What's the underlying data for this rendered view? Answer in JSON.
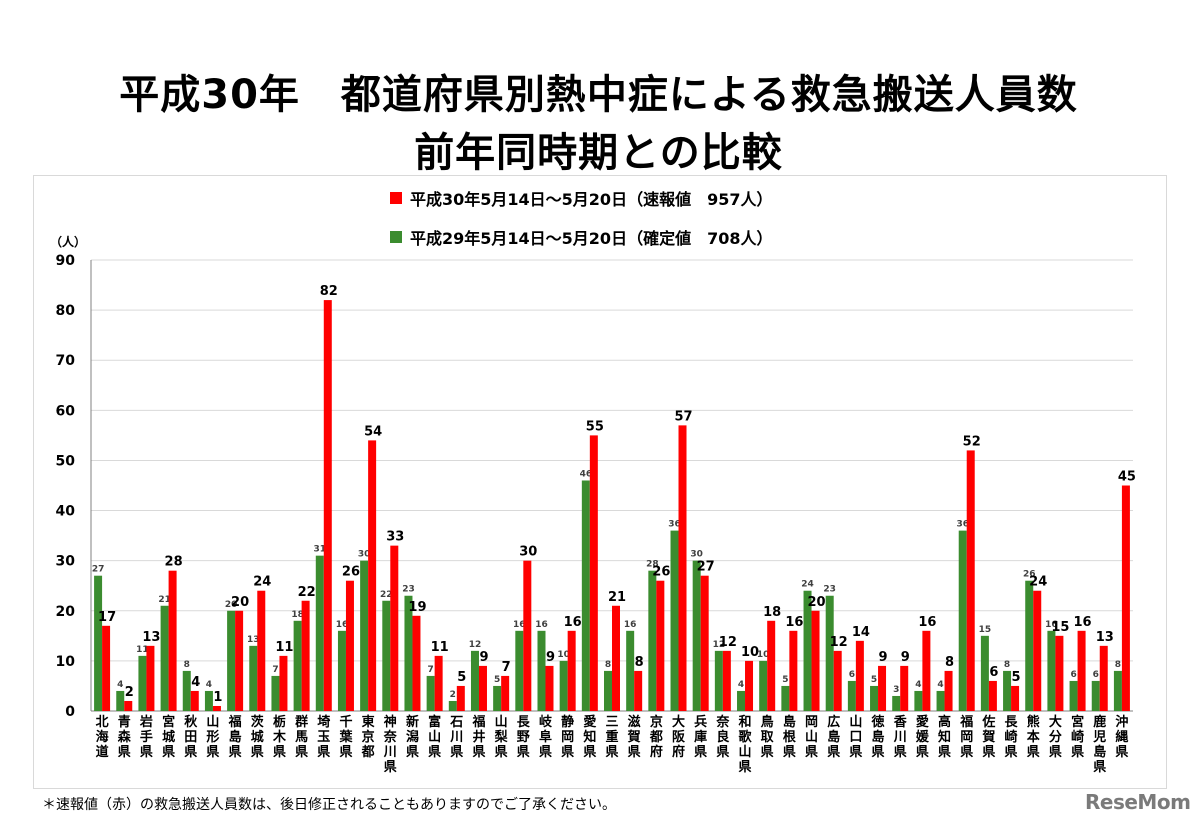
{
  "title_line1": "平成30年　都道府県別熱中症による救急搬送人員数",
  "title_line2": "前年同時期との比較",
  "footnote": "＊速報値（赤）の救急搬送人員数は、後日修正されることもありますのでご了承ください。",
  "logo": "ReseMom",
  "colors": {
    "current": "#ff0000",
    "previous": "#3b8c2f",
    "grid": "#d9d9d9"
  },
  "chart_data": {
    "type": "bar",
    "title": "平成30年　都道府県別熱中症による救急搬送人員数　前年同時期との比較",
    "unit_label": "（人）",
    "ylim": [
      0,
      90
    ],
    "yticks": [
      0,
      10,
      20,
      30,
      40,
      50,
      60,
      70,
      80,
      90
    ],
    "grid": true,
    "legend_position": "top-center",
    "categories": [
      "北海道",
      "青森県",
      "岩手県",
      "宮城県",
      "秋田県",
      "山形県",
      "福島県",
      "茨城県",
      "栃木県",
      "群馬県",
      "埼玉県",
      "千葉県",
      "東京都",
      "神奈川県",
      "新潟県",
      "富山県",
      "石川県",
      "福井県",
      "山梨県",
      "長野県",
      "岐阜県",
      "静岡県",
      "愛知県",
      "三重県",
      "滋賀県",
      "京都府",
      "大阪府",
      "兵庫県",
      "奈良県",
      "和歌山県",
      "鳥取県",
      "島根県",
      "岡山県",
      "広島県",
      "山口県",
      "徳島県",
      "香川県",
      "愛媛県",
      "高知県",
      "福岡県",
      "佐賀県",
      "長崎県",
      "熊本県",
      "大分県",
      "宮崎県",
      "鹿児島県",
      "沖縄県"
    ],
    "series": [
      {
        "name": "平成29年5月14日～5月20日（確定値　708人）",
        "color": "#3b8c2f",
        "values": [
          27,
          4,
          11,
          21,
          8,
          4,
          20,
          13,
          7,
          18,
          31,
          16,
          30,
          22,
          23,
          7,
          2,
          12,
          5,
          16,
          16,
          10,
          46,
          8,
          16,
          28,
          36,
          30,
          12,
          4,
          10,
          5,
          24,
          23,
          6,
          5,
          3,
          4,
          4,
          36,
          15,
          8,
          26,
          16,
          6,
          6,
          8
        ]
      },
      {
        "name": "平成30年5月14日～5月20日（速報値　957人）",
        "color": "#ff0000",
        "values": [
          17,
          2,
          13,
          28,
          4,
          1,
          20,
          24,
          11,
          22,
          82,
          26,
          54,
          33,
          19,
          11,
          5,
          9,
          7,
          30,
          9,
          16,
          55,
          21,
          8,
          26,
          57,
          27,
          12,
          10,
          18,
          16,
          20,
          12,
          14,
          9,
          9,
          16,
          8,
          52,
          6,
          5,
          24,
          15,
          16,
          13,
          45
        ]
      }
    ]
  }
}
